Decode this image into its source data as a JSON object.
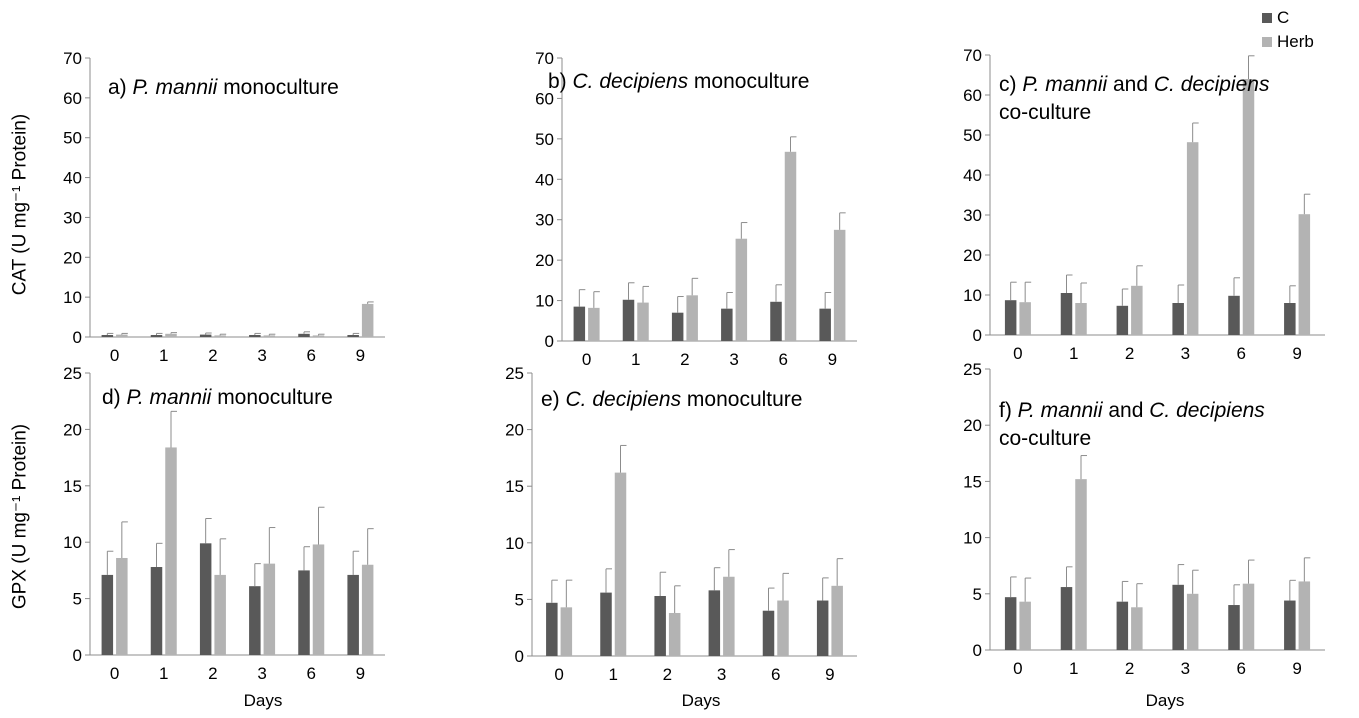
{
  "legend": [
    {
      "name": "C",
      "color": "#595959"
    },
    {
      "name": "Herb",
      "color": "#b3b3b3"
    }
  ],
  "y_labels": {
    "cat": "CAT (U mg⁻¹ Protein)",
    "gpx": "GPX (U mg⁻¹ Protein)"
  },
  "x_label": "Days",
  "chart_data": [
    {
      "type": "bar",
      "id": "a",
      "title_prefix": "a) ",
      "title_italic": "P. mannii",
      "title_rest": " monoculture",
      "title_line2": "",
      "categories": [
        "0",
        "1",
        "2",
        "3",
        "6",
        "9"
      ],
      "ylim": [
        0,
        70
      ],
      "yticks": [
        0,
        10,
        20,
        30,
        40,
        50,
        60,
        70
      ],
      "xlabel": "",
      "ylabel": "CAT (U mg-1 Protein)",
      "series": [
        {
          "name": "C",
          "values": [
            0.5,
            0.5,
            0.6,
            0.5,
            0.8,
            0.5
          ],
          "errors": [
            0.4,
            0.4,
            0.4,
            0.4,
            0.5,
            0.4
          ]
        },
        {
          "name": "Herb",
          "values": [
            0.6,
            0.8,
            0.4,
            0.4,
            0.4,
            8.3
          ],
          "errors": [
            0.3,
            0.3,
            0.3,
            0.3,
            0.3,
            0.5
          ]
        }
      ]
    },
    {
      "type": "bar",
      "id": "b",
      "title_prefix": "b) ",
      "title_italic": "C. decipiens",
      "title_rest": " monoculture",
      "title_line2": "",
      "categories": [
        "0",
        "1",
        "2",
        "3",
        "6",
        "9"
      ],
      "ylim": [
        0,
        70
      ],
      "yticks": [
        0,
        10,
        20,
        30,
        40,
        50,
        60,
        70
      ],
      "xlabel": "",
      "ylabel": "",
      "series": [
        {
          "name": "C",
          "values": [
            8.5,
            10.2,
            7.0,
            8.0,
            9.7,
            8.0
          ],
          "errors": [
            4.2,
            4.2,
            4.0,
            4.0,
            4.2,
            4.0
          ]
        },
        {
          "name": "Herb",
          "values": [
            8.2,
            9.5,
            11.3,
            25.3,
            46.8,
            27.5
          ],
          "errors": [
            4.0,
            4.0,
            4.2,
            4.0,
            3.7,
            4.2
          ]
        }
      ]
    },
    {
      "type": "bar",
      "id": "c",
      "title_prefix": "c) ",
      "title_italic": "P. mannii",
      "title_rest": " and ",
      "title_italic2": "C. decipiens",
      "title_line2": "co-culture",
      "categories": [
        "0",
        "1",
        "2",
        "3",
        "6",
        "9"
      ],
      "ylim": [
        0,
        70
      ],
      "yticks": [
        0,
        10,
        20,
        30,
        40,
        50,
        60,
        70
      ],
      "xlabel": "",
      "ylabel": "",
      "series": [
        {
          "name": "C",
          "values": [
            8.7,
            10.5,
            7.3,
            8.0,
            9.8,
            8.0
          ],
          "errors": [
            4.5,
            4.5,
            4.2,
            4.5,
            4.5,
            4.3
          ]
        },
        {
          "name": "Herb",
          "values": [
            8.2,
            8.0,
            12.3,
            48.2,
            64.0,
            30.2
          ],
          "errors": [
            5.0,
            5.0,
            5.0,
            4.8,
            5.8,
            5.0
          ]
        }
      ]
    },
    {
      "type": "bar",
      "id": "d",
      "title_prefix": "d) ",
      "title_italic": "P. mannii",
      "title_rest": " monoculture",
      "title_line2": "",
      "categories": [
        "0",
        "1",
        "2",
        "3",
        "6",
        "9"
      ],
      "ylim": [
        0,
        25
      ],
      "yticks": [
        0,
        5,
        10,
        15,
        20,
        25
      ],
      "xlabel": "Days",
      "ylabel": "GPX (U mg-1 Protein)",
      "series": [
        {
          "name": "C",
          "values": [
            7.1,
            7.8,
            9.9,
            6.1,
            7.5,
            7.1
          ],
          "errors": [
            2.1,
            2.1,
            2.2,
            2.0,
            2.1,
            2.1
          ]
        },
        {
          "name": "Herb",
          "values": [
            8.6,
            18.4,
            7.1,
            8.1,
            9.8,
            8.0
          ],
          "errors": [
            3.2,
            3.2,
            3.2,
            3.2,
            3.3,
            3.2
          ]
        }
      ]
    },
    {
      "type": "bar",
      "id": "e",
      "title_prefix": "e) ",
      "title_italic": "C. decipiens",
      "title_rest": " monoculture",
      "title_line2": "",
      "categories": [
        "0",
        "1",
        "2",
        "3",
        "6",
        "9"
      ],
      "ylim": [
        0,
        25
      ],
      "yticks": [
        0,
        5,
        10,
        15,
        20,
        25
      ],
      "xlabel": "Days",
      "ylabel": "",
      "series": [
        {
          "name": "C",
          "values": [
            4.7,
            5.6,
            5.3,
            5.8,
            4.0,
            4.9
          ],
          "errors": [
            2.0,
            2.1,
            2.1,
            2.0,
            2.0,
            2.0
          ]
        },
        {
          "name": "Herb",
          "values": [
            4.3,
            16.2,
            3.8,
            7.0,
            4.9,
            6.2
          ],
          "errors": [
            2.4,
            2.4,
            2.4,
            2.4,
            2.4,
            2.4
          ]
        }
      ]
    },
    {
      "type": "bar",
      "id": "f",
      "title_prefix": "f) ",
      "title_italic": "P. mannii",
      "title_rest": " and ",
      "title_italic2": "C. decipiens",
      "title_line2": "co-culture",
      "categories": [
        "0",
        "1",
        "2",
        "3",
        "6",
        "9"
      ],
      "ylim": [
        0,
        25
      ],
      "yticks": [
        0,
        5,
        10,
        15,
        20,
        25
      ],
      "xlabel": "Days",
      "ylabel": "",
      "series": [
        {
          "name": "C",
          "values": [
            4.7,
            5.6,
            4.3,
            5.8,
            4.0,
            4.4
          ],
          "errors": [
            1.8,
            1.8,
            1.8,
            1.8,
            1.8,
            1.8
          ]
        },
        {
          "name": "Herb",
          "values": [
            4.3,
            15.2,
            3.8,
            5.0,
            5.9,
            6.1
          ],
          "errors": [
            2.1,
            2.1,
            2.1,
            2.1,
            2.1,
            2.1
          ]
        }
      ]
    }
  ]
}
